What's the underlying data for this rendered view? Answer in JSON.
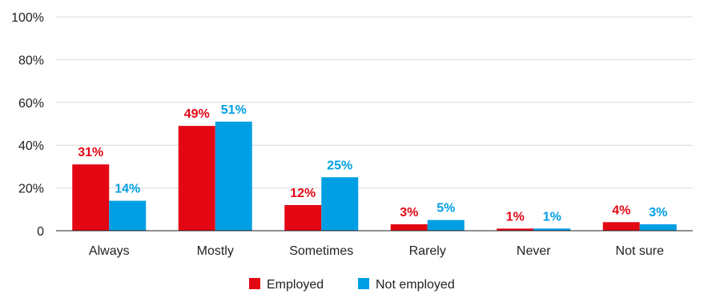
{
  "chart_data": {
    "type": "bar",
    "categories": [
      "Always",
      "Mostly",
      "Sometimes",
      "Rarely",
      "Never",
      "Not sure"
    ],
    "series": [
      {
        "name": "Employed",
        "color": "#e30613",
        "values": [
          31,
          49,
          12,
          3,
          1,
          4
        ],
        "labels": [
          "31%",
          "49%",
          "12%",
          "3%",
          "1%",
          "4%"
        ]
      },
      {
        "name": "Not employed",
        "color": "#009fe3",
        "values": [
          14,
          51,
          25,
          5,
          1,
          3
        ],
        "labels": [
          "14%",
          "51%",
          "25%",
          "5%",
          "1%",
          "3%"
        ]
      }
    ],
    "ylim": [
      0,
      100
    ],
    "yticks": [
      0,
      20,
      40,
      60,
      80,
      100
    ],
    "ytick_labels": [
      "0",
      "20%",
      "40%",
      "60%",
      "80%",
      "100%"
    ],
    "grid": true,
    "legend_position": "bottom-center"
  }
}
